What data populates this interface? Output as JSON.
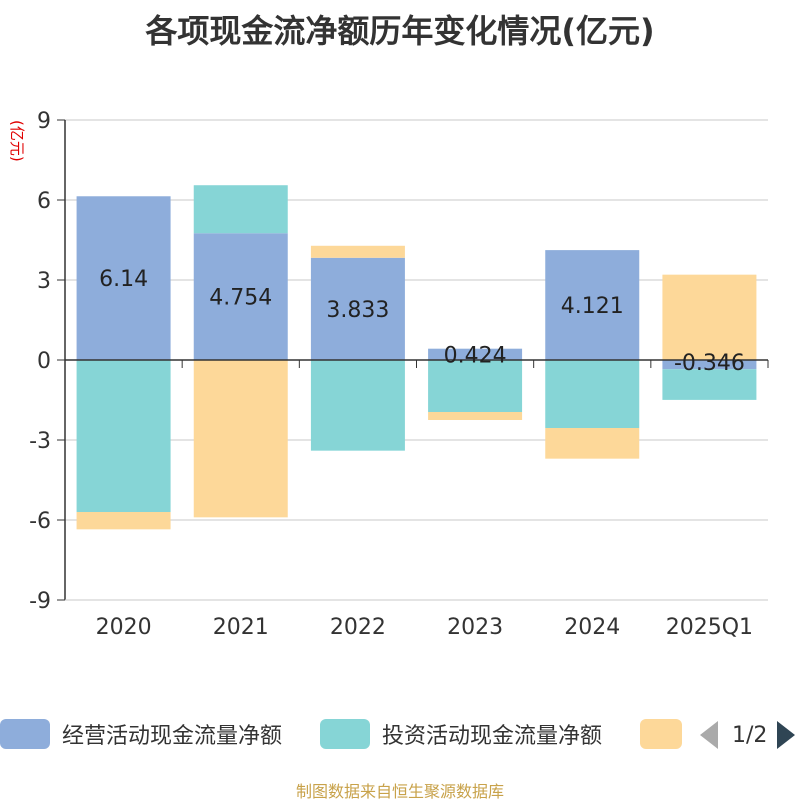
{
  "page": {
    "title": "各项现金流净额历年变化情况(亿元)",
    "unit_label": "(亿元)",
    "source": "制图数据来自恒生聚源数据库"
  },
  "legend": {
    "items": [
      {
        "name": "经营活动现金流量净额",
        "color": "#8eaddb"
      },
      {
        "name": "投资活动现金流量净额",
        "color": "#86d5d6"
      },
      {
        "name": "",
        "color": "#fdd899"
      }
    ],
    "pager": "1/2"
  },
  "chart_data": {
    "type": "bar",
    "stacked": true,
    "categories": [
      "2020",
      "2021",
      "2022",
      "2023",
      "2024",
      "2025Q1"
    ],
    "ylim": [
      -9,
      9
    ],
    "yticks": [
      -9,
      -6,
      -3,
      0,
      3,
      6,
      9
    ],
    "grid": true,
    "legend_position": "bottom",
    "series": [
      {
        "name": "经营活动现金流量净额",
        "color": "#8eaddb",
        "values": [
          6.14,
          4.754,
          3.833,
          0.424,
          4.121,
          -0.346
        ],
        "labels": [
          "6.14",
          "4.754",
          "3.833",
          "0.424",
          "4.121",
          "-0.346"
        ]
      },
      {
        "name": "投资活动现金流量净额",
        "color": "#86d5d6",
        "values": [
          -5.7,
          1.8,
          -3.4,
          -1.95,
          -2.55,
          -1.15
        ]
      },
      {
        "name": "",
        "color": "#fdd899",
        "values": [
          -0.65,
          -5.9,
          0.45,
          -0.3,
          -1.15,
          3.2
        ]
      }
    ]
  }
}
